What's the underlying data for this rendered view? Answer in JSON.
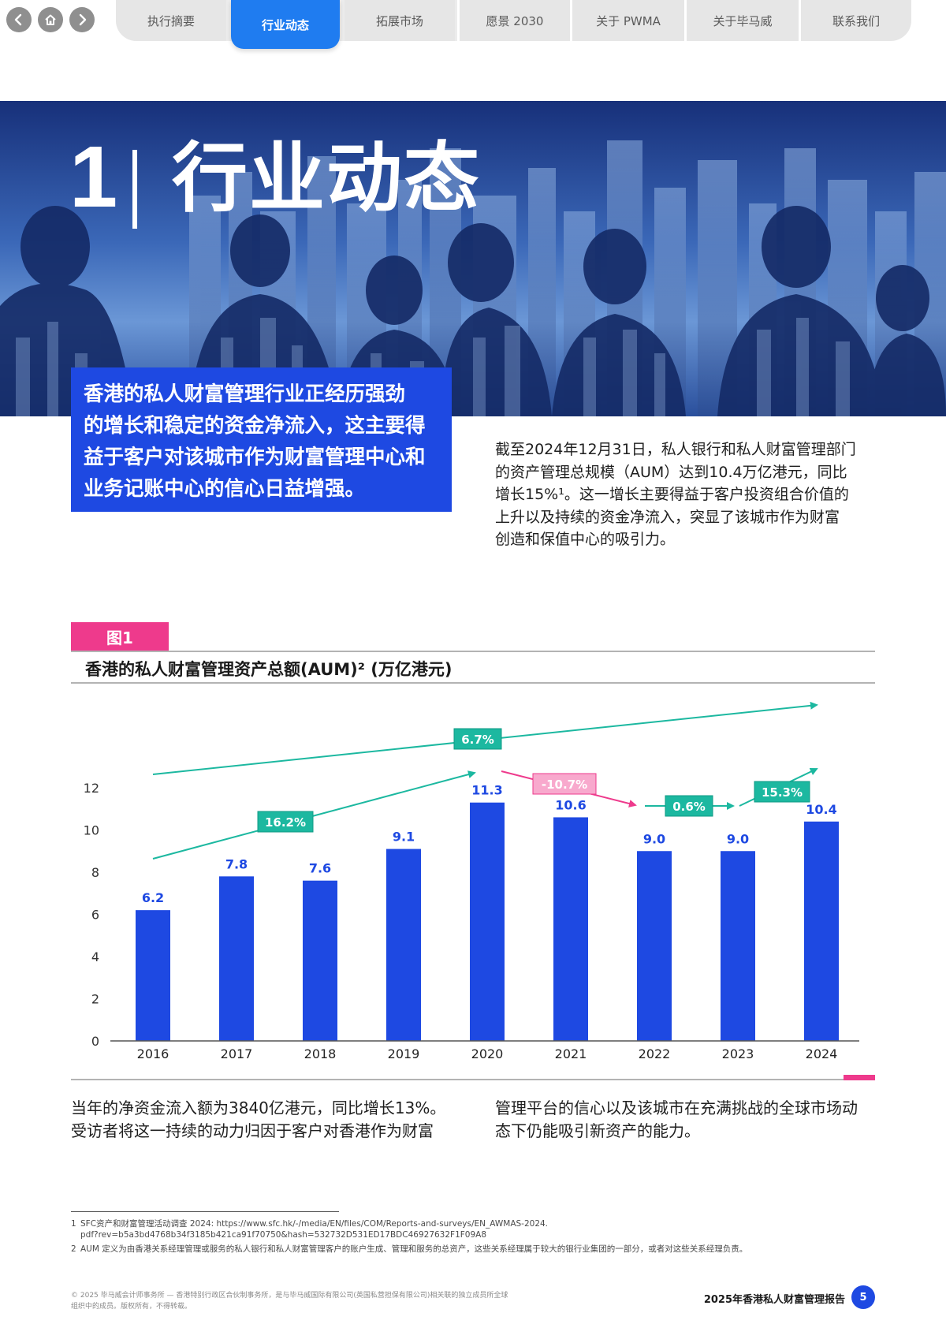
{
  "nav": {
    "icons": [
      "back-icon",
      "home-icon",
      "forward-icon"
    ],
    "tabs": [
      {
        "label": "执行摘要"
      },
      {
        "label": "行业动态"
      },
      {
        "label": "拓展市场"
      },
      {
        "label": "愿景 2030"
      },
      {
        "label": "关于 PWMA"
      },
      {
        "label": "关于毕马威"
      },
      {
        "label": "联系我们"
      }
    ],
    "active_tab": "行业动态"
  },
  "hero": {
    "number": "1",
    "title": "行业动态"
  },
  "callout": {
    "lines": [
      "香港的私人财富管理行业正经历强劲",
      "的增长和稳定的资金净流入，这主要得",
      "益于客户对该城市作为财富管理中心和",
      "业务记账中心的信心日益增强。"
    ]
  },
  "intro": {
    "lines": [
      "截至2024年12月31日，私人银行和私人财富管理部门",
      "的资产管理总规模（AUM）达到10.4万亿港元，同比",
      "增长15%¹。这一增长主要得益于客户投资组合价值的",
      "上升以及持续的资金净流入，突显了该城市作为财富",
      "创造和保值中心的吸引力。"
    ]
  },
  "figure": {
    "tag": "图1",
    "title": "香港的私人财富管理资产总额(AUM)² (万亿港元)"
  },
  "chart_data": {
    "type": "bar",
    "title": "香港的私人财富管理资产总额(AUM)² (万亿港元)",
    "categories": [
      "2016",
      "2017",
      "2018",
      "2019",
      "2020",
      "2021",
      "2022",
      "2023",
      "2024"
    ],
    "values": [
      6.2,
      7.8,
      7.6,
      9.1,
      11.3,
      10.6,
      9.0,
      9.0,
      10.4
    ],
    "value_labels": [
      "6.2",
      "7.8",
      "7.6",
      "9.1",
      "11.3",
      "10.6",
      "9.0",
      "9.0",
      "10.4"
    ],
    "yticks": [
      0,
      2,
      4,
      6,
      8,
      10,
      12
    ],
    "ylim": [
      0,
      12
    ],
    "grid": false,
    "bar_color": "#1e49e2",
    "annotations": [
      {
        "label": "6.7%",
        "color": "#1cb8a0"
      },
      {
        "label": "16.2%",
        "color": "#1cb8a0"
      },
      {
        "label": "-10.7%",
        "color": "#ee3a8c"
      },
      {
        "label": "0.6%",
        "color": "#1cb8a0"
      },
      {
        "label": "15.3%",
        "color": "#1cb8a0"
      }
    ]
  },
  "body": {
    "left_lines": [
      "当年的净资金流入额为3840亿港元，同比增长13%。",
      "受访者将这一持续的动力归因于客户对香港作为财富"
    ],
    "right_lines": [
      "管理平台的信心以及该城市在充满挑战的全球市场动",
      "态下仍能吸引新资产的能力。"
    ]
  },
  "footnotes": [
    {
      "num": "1",
      "lines": [
        "SFC资产和财富管理活动调查 2024: https://www.sfc.hk/-/media/EN/files/COM/Reports-and-surveys/EN_AWMAS-2024.",
        "pdf?rev=b5a3bd4768b34f3185b421ca91f70750&hash=532732D531ED17BDC46927632F1F09A8"
      ]
    },
    {
      "num": "2",
      "lines": [
        "AUM 定义为由香港关系经理管理或服务的私人银行和私人财富管理客户的账户生成、管理和服务的总资产，这些关系经理属于较大的银行业集团的一部分，或者对这些关系经理负责。"
      ]
    }
  ],
  "footer": {
    "copyright_lines": [
      "© 2025 毕马威会计师事务所 — 香港特别行政区合伙制事务所，是与毕马威国际有限公司(英国私营担保有限公司)相关联的独立成员所全球",
      "组织中的成员。版权所有，不得转载。"
    ],
    "report_name": "2025年香港私人财富管理报告",
    "page_number": "5"
  },
  "colors": {
    "brand_blue": "#1e49e2",
    "active_tab": "#1f7cf0",
    "accent_pink": "#ee3a8c",
    "accent_teal": "#1cb8a0"
  }
}
